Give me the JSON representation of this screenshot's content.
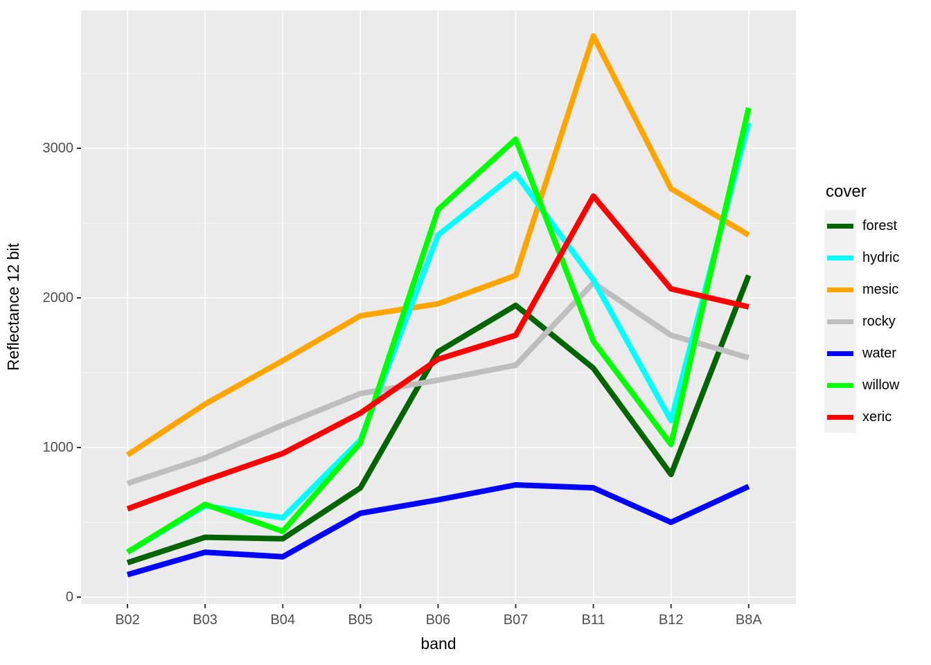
{
  "chart_data": {
    "type": "line",
    "title": "",
    "xlabel": "band",
    "ylabel": "Reflectance 12 bit",
    "legend_title": "cover",
    "legend_position": "right",
    "grid": true,
    "categories": [
      "B02",
      "B03",
      "B04",
      "B05",
      "B06",
      "B07",
      "B11",
      "B12",
      "B8A"
    ],
    "series": [
      {
        "name": "forest",
        "color": "#006400",
        "values": [
          230,
          400,
          390,
          730,
          1640,
          1950,
          1530,
          820,
          2150
        ]
      },
      {
        "name": "hydric",
        "color": "#00ffff",
        "values": [
          300,
          610,
          530,
          1050,
          2420,
          2830,
          2120,
          1180,
          3170
        ]
      },
      {
        "name": "mesic",
        "color": "#ffa500",
        "values": [
          950,
          1290,
          1580,
          1880,
          1960,
          2150,
          3750,
          2730,
          2420
        ]
      },
      {
        "name": "rocky",
        "color": "#bebebe",
        "values": [
          760,
          930,
          1150,
          1360,
          1450,
          1550,
          2100,
          1750,
          1600
        ]
      },
      {
        "name": "water",
        "color": "#0000ff",
        "values": [
          150,
          300,
          270,
          560,
          650,
          750,
          730,
          500,
          740
        ]
      },
      {
        "name": "willow",
        "color": "#00ff00",
        "values": [
          300,
          620,
          440,
          1030,
          2590,
          3060,
          1710,
          1020,
          3270
        ]
      },
      {
        "name": "xeric",
        "color": "#ff0000",
        "values": [
          590,
          780,
          960,
          1230,
          1590,
          1750,
          2680,
          2060,
          1940
        ]
      }
    ],
    "draw_order": [
      "forest",
      "mesic",
      "rocky",
      "hydric",
      "water",
      "willow",
      "xeric"
    ],
    "y_major_ticks": [
      0,
      1000,
      2000,
      3000
    ],
    "y_minor_ticks": [
      500,
      1500,
      2500,
      3500
    ],
    "ylim": [
      -45,
      3920
    ],
    "colors": {
      "panel_background": "#ebebeb",
      "gridline": "#ffffff",
      "tick_label": "#4d4d4d",
      "axis_title": "#000000",
      "tick_mark": "#333333",
      "legend_key_background": "#f1f1f1"
    }
  }
}
